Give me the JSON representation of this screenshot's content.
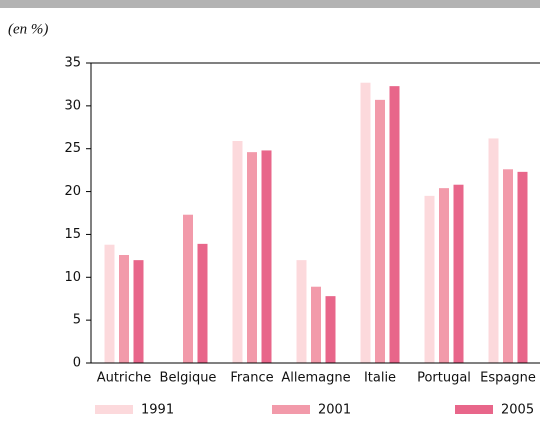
{
  "chart_data": {
    "type": "bar",
    "subtitle": "(en %)",
    "categories": [
      "Autriche",
      "Belgique",
      "France",
      "Allemagne",
      "Italie",
      "Portugal",
      "Espagne"
    ],
    "series": [
      {
        "name": "1991",
        "color": "#fcd9dc",
        "values": [
          13.8,
          null,
          25.9,
          12.0,
          32.7,
          19.5,
          26.2
        ]
      },
      {
        "name": "2001",
        "color": "#f29aaa",
        "values": [
          12.6,
          17.3,
          24.6,
          8.9,
          30.7,
          20.4,
          22.6
        ]
      },
      {
        "name": "2005",
        "color": "#e8668a",
        "values": [
          12.0,
          13.9,
          24.8,
          7.8,
          32.3,
          20.8,
          22.3
        ]
      }
    ],
    "ylim": [
      0,
      35
    ],
    "yticks": [
      0,
      5,
      10,
      15,
      20,
      25,
      30,
      35
    ]
  }
}
